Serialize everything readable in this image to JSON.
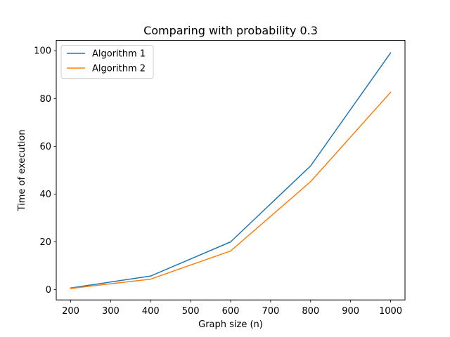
{
  "chart_data": {
    "type": "line",
    "title": "Comparing with probability 0.3",
    "xlabel": "Graph size (n)",
    "ylabel": "Time of execution",
    "x": [
      200,
      400,
      600,
      800,
      1000
    ],
    "xlim": [
      164,
      1036
    ],
    "ylim": [
      -4.3,
      104.3
    ],
    "xticks": [
      200,
      300,
      400,
      500,
      600,
      700,
      800,
      900,
      1000
    ],
    "yticks": [
      0,
      20,
      40,
      60,
      80,
      100
    ],
    "grid": false,
    "legend_position": "top-left",
    "series": [
      {
        "name": "Algorithm 1",
        "color": "#1f77b4",
        "values": [
          0.7,
          5.7,
          20.0,
          51.8,
          99.1
        ]
      },
      {
        "name": "Algorithm 2",
        "color": "#ff7f0e",
        "values": [
          0.5,
          4.4,
          16.2,
          45.2,
          82.6
        ]
      }
    ]
  }
}
